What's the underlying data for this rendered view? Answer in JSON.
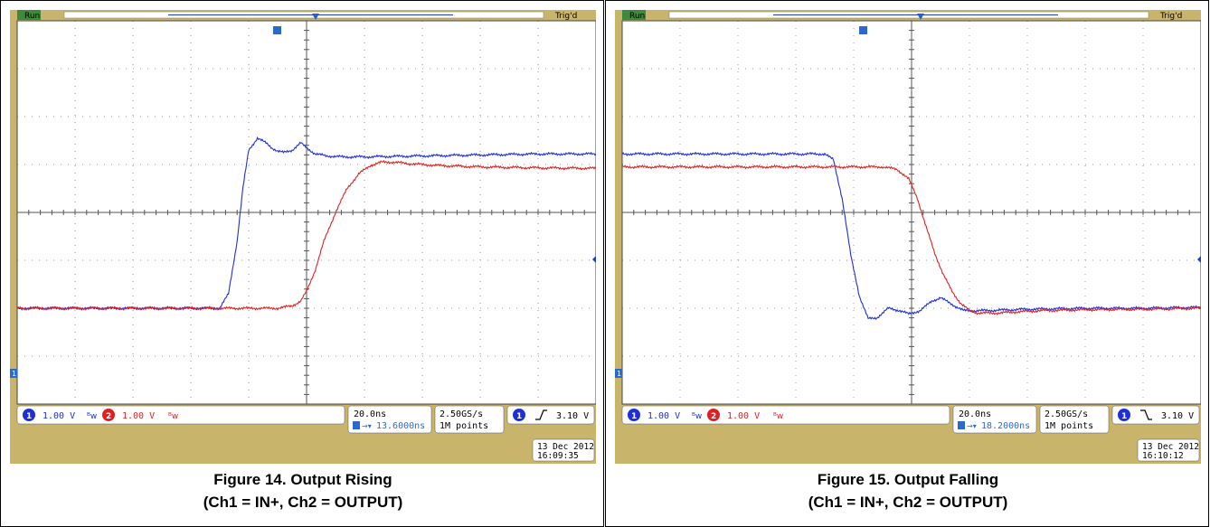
{
  "panels": [
    {
      "caption_title": "Figure 14. Output Rising",
      "caption_sub": "(Ch1 = IN+, Ch2 = OUTPUT)",
      "scope": {
        "status": "Run",
        "trigger_status": "Trig'd",
        "ch1_scale": "1.00 V",
        "ch2_scale": "1.00 V",
        "timebase": "20.0ns",
        "trigger_delay": "13.6000ns",
        "sample_rate": "2.50GS/s",
        "record_length": "1M points",
        "trigger_level": "3.10 V",
        "trigger_slope": "rising",
        "date": "13 Dec  2012",
        "time": "16:09:35"
      },
      "chart_data": {
        "type": "line",
        "title": "",
        "xlabel": "",
        "ylabel": "",
        "grid": true,
        "xlim": [
          -100,
          100
        ],
        "ylim": [
          -4,
          4
        ],
        "x_units": "ns",
        "y_units": "V",
        "series": [
          {
            "name": "1",
            "color": "#1f2fd8",
            "x": [
              -100,
              -30,
              -27,
              -24,
              -22,
              -20,
              -17,
              -14,
              -12,
              -10,
              -8,
              -5,
              -2,
              0,
              3,
              7,
              12,
              20,
              40,
              60,
              80,
              100
            ],
            "y": [
              -2.0,
              -2.0,
              -1.7,
              -0.6,
              0.5,
              1.3,
              1.55,
              1.45,
              1.35,
              1.28,
              1.25,
              1.3,
              1.45,
              1.35,
              1.22,
              1.18,
              1.16,
              1.16,
              1.18,
              1.2,
              1.22,
              1.22
            ]
          },
          {
            "name": "2",
            "color": "#e02020",
            "x": [
              -100,
              -10,
              -5,
              -2,
              0,
              3,
              6,
              10,
              14,
              18,
              22,
              26,
              30,
              35,
              45,
              60,
              80,
              100
            ],
            "y": [
              -2.0,
              -2.0,
              -1.95,
              -1.85,
              -1.65,
              -1.2,
              -0.6,
              0.0,
              0.5,
              0.8,
              0.98,
              1.05,
              1.05,
              1.02,
              0.98,
              0.95,
              0.93,
              0.92
            ]
          }
        ]
      }
    },
    {
      "caption_title": "Figure 15. Output Falling",
      "caption_sub": "(Ch1 = IN+, Ch2 = OUTPUT)",
      "scope": {
        "status": "Run",
        "trigger_status": "Trig'd",
        "ch1_scale": "1.00 V",
        "ch2_scale": "1.00 V",
        "timebase": "20.0ns",
        "trigger_delay": "18.2000ns",
        "sample_rate": "2.50GS/s",
        "record_length": "1M points",
        "trigger_level": "3.10 V",
        "trigger_slope": "falling",
        "date": "13 Dec  2012",
        "time": "16:10:12"
      },
      "chart_data": {
        "type": "line",
        "title": "",
        "xlabel": "",
        "ylabel": "",
        "grid": true,
        "xlim": [
          -100,
          100
        ],
        "ylim": [
          -4,
          4
        ],
        "x_units": "ns",
        "y_units": "V",
        "series": [
          {
            "name": "1",
            "color": "#1f2fd8",
            "x": [
              -100,
              -30,
              -27,
              -24,
              -21,
              -18,
              -15,
              -12,
              -8,
              -4,
              -1,
              3,
              7,
              10,
              14,
              18,
              25,
              40,
              60,
              80,
              100
            ],
            "y": [
              1.22,
              1.22,
              1.1,
              0.3,
              -0.9,
              -1.75,
              -2.22,
              -2.2,
              -2.0,
              -2.05,
              -2.12,
              -2.05,
              -1.85,
              -1.78,
              -1.92,
              -2.05,
              -2.05,
              -2.02,
              -2.0,
              -2.0,
              -1.98
            ]
          },
          {
            "name": "2",
            "color": "#e02020",
            "x": [
              -100,
              -10,
              -5,
              -1,
              2,
              5,
              8,
              11,
              14,
              17,
              20,
              23,
              26,
              30,
              35,
              45,
              60,
              80,
              100
            ],
            "y": [
              0.95,
              0.95,
              0.9,
              0.7,
              0.3,
              -0.3,
              -0.85,
              -1.3,
              -1.65,
              -1.9,
              -2.05,
              -2.1,
              -2.1,
              -2.1,
              -2.08,
              -2.05,
              -2.03,
              -2.02,
              -2.0
            ]
          }
        ]
      }
    }
  ]
}
